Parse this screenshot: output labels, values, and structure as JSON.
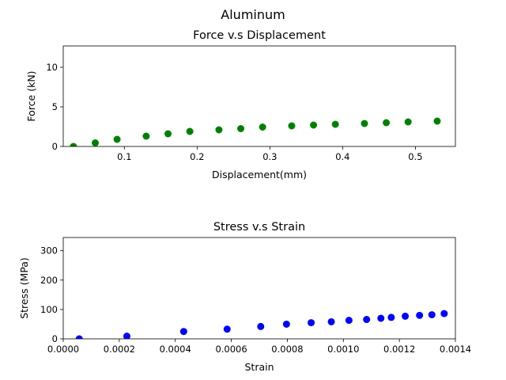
{
  "figure": {
    "suptitle": "Aluminum"
  },
  "chart_data": [
    {
      "type": "scatter",
      "title": "Force v.s Displacement",
      "xlabel": "Displacement(mm)",
      "ylabel": "Force (kN)",
      "xlim": [
        0.016,
        0.555
      ],
      "ylim": [
        0,
        12.7
      ],
      "xticks": [
        0.1,
        0.2,
        0.3,
        0.4,
        0.5
      ],
      "xtick_labels": [
        "0.1",
        "0.2",
        "0.3",
        "0.4",
        "0.5"
      ],
      "yticks": [
        0,
        5,
        10
      ],
      "ytick_labels": [
        "0",
        "5",
        "10"
      ],
      "grid": false,
      "color": "#008000",
      "x": [
        0.03,
        0.06,
        0.09,
        0.13,
        0.16,
        0.19,
        0.23,
        0.26,
        0.29,
        0.33,
        0.36,
        0.39,
        0.43,
        0.46,
        0.49,
        0.53
      ],
      "y": [
        0.0,
        0.45,
        0.9,
        1.3,
        1.6,
        1.9,
        2.1,
        2.25,
        2.45,
        2.6,
        2.7,
        2.8,
        2.9,
        3.0,
        3.1,
        3.2
      ]
    },
    {
      "type": "scatter",
      "title": "Stress v.s Strain",
      "xlabel": "Strain",
      "ylabel": "Stress (MPa)",
      "xlim": [
        0.0,
        0.0014
      ],
      "ylim": [
        0,
        345
      ],
      "xticks": [
        0.0,
        0.0002,
        0.0004,
        0.0006,
        0.0008,
        0.001,
        0.0012,
        0.0014
      ],
      "xtick_labels": [
        "0.0000",
        "0.0002",
        "0.0004",
        "0.0006",
        "0.0008",
        "0.0010",
        "0.0012",
        "0.0014"
      ],
      "yticks": [
        0,
        100,
        200,
        300
      ],
      "ytick_labels": [
        "0",
        "100",
        "200",
        "300"
      ],
      "grid": false,
      "color": "#0000ff",
      "x": [
        5.7e-05,
        0.000227,
        0.00043,
        0.000585,
        0.000705,
        0.000797,
        0.000885,
        0.000957,
        0.00102,
        0.001083,
        0.001134,
        0.001171,
        0.001221,
        0.001272,
        0.001316,
        0.00136
      ],
      "y": [
        0,
        9,
        25,
        33,
        42,
        50,
        55,
        58,
        63,
        66,
        70,
        73,
        77,
        80,
        82,
        86
      ]
    }
  ]
}
